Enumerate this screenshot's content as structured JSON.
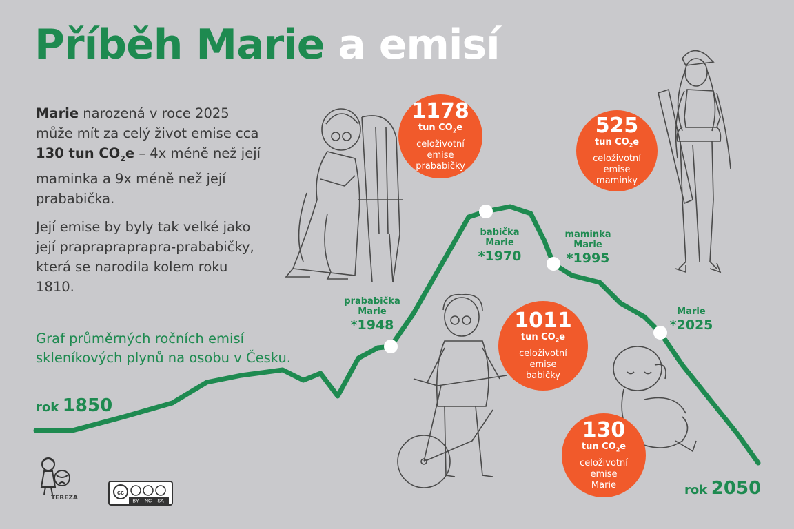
{
  "title": {
    "part1": "Příběh Marie",
    "part2": "a emisí"
  },
  "intro": {
    "name": "Marie",
    "text1": " narozená v roce 2025 může mít za celý život emise cca ",
    "amount": "130 tun CO",
    "amount_sub": "2",
    "amount_suffix": "e",
    "text2": " – 4x méně než její maminka a 9x méně než její prababička.",
    "paragraph2": "Její emise by byly tak velké jako její praprapraprapra-prababičky, která se narodila kolem roku 1810."
  },
  "graph_caption": "Graf průměrných ročních emisí skleníkových plynů na osobu v Česku.",
  "start_year": {
    "prefix": "rok",
    "year": "1850"
  },
  "end_year": {
    "prefix": "rok",
    "year": "2050"
  },
  "generations": [
    {
      "label1": "prababička",
      "label2": "Marie",
      "year": "*1948"
    },
    {
      "label1": "babička",
      "label2": "Marie",
      "year": "*1970"
    },
    {
      "label1": "maminka",
      "label2": "Marie",
      "year": "*1995"
    },
    {
      "label1": "",
      "label2": "Marie",
      "year": "*2025"
    }
  ],
  "bubbles": [
    {
      "value": "1178",
      "unit": "tun CO",
      "unit_sub": "2",
      "unit_suffix": "e",
      "line1": "celoživotní",
      "line2": "emise",
      "line3": "prababičky"
    },
    {
      "value": "525",
      "unit": "tun CO",
      "unit_sub": "2",
      "unit_suffix": "e",
      "line1": "celoživotní",
      "line2": "emise",
      "line3": "maminky"
    },
    {
      "value": "1011",
      "unit": "tun CO",
      "unit_sub": "2",
      "unit_suffix": "e",
      "line1": "celoživotní",
      "line2": "emise",
      "line3": "babičky"
    },
    {
      "value": "130",
      "unit": "tun CO",
      "unit_sub": "2",
      "unit_suffix": "e",
      "line1": "celoživotní",
      "line2": "emise",
      "line3": "Marie"
    }
  ],
  "logo": {
    "brand": "TEREZA",
    "license": [
      "BY",
      "NC",
      "SA"
    ],
    "cc": "cc"
  },
  "colors": {
    "green": "#1e8a50",
    "orange": "#f15a2b",
    "background": "#c9c9cc"
  }
}
